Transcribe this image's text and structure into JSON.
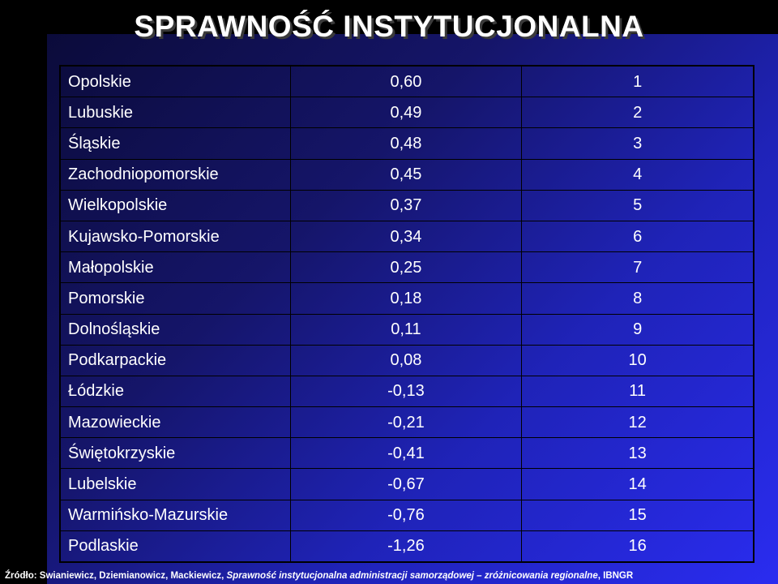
{
  "title": "SPRAWNOŚĆ INSTYTUCJONALNA",
  "table": {
    "rows": [
      {
        "region": "Opolskie",
        "score": "0,60",
        "rank": "1"
      },
      {
        "region": "Lubuskie",
        "score": "0,49",
        "rank": "2"
      },
      {
        "region": "Śląskie",
        "score": "0,48",
        "rank": "3"
      },
      {
        "region": "Zachodniopomorskie",
        "score": "0,45",
        "rank": "4"
      },
      {
        "region": "Wielkopolskie",
        "score": "0,37",
        "rank": "5"
      },
      {
        "region": "Kujawsko-Pomorskie",
        "score": "0,34",
        "rank": "6"
      },
      {
        "region": "Małopolskie",
        "score": "0,25",
        "rank": "7"
      },
      {
        "region": "Pomorskie",
        "score": "0,18",
        "rank": "8"
      },
      {
        "region": "Dolnośląskie",
        "score": "0,11",
        "rank": "9"
      },
      {
        "region": "Podkarpackie",
        "score": "0,08",
        "rank": "10"
      },
      {
        "region": "Łódzkie",
        "score": "-0,13",
        "rank": "11"
      },
      {
        "region": "Mazowieckie",
        "score": "-0,21",
        "rank": "12"
      },
      {
        "region": "Świętokrzyskie",
        "score": "-0,41",
        "rank": "13"
      },
      {
        "region": "Lubelskie",
        "score": "-0,67",
        "rank": "14"
      },
      {
        "region": "Warmińsko-Mazurskie",
        "score": "-0,76",
        "rank": "15"
      },
      {
        "region": "Podlaskie",
        "score": "-1,26",
        "rank": "16"
      }
    ]
  },
  "source": {
    "prefix": "Źródło: Swianiewicz, Dziemianowicz, Mackiewicz, ",
    "italic": "Sprawność instytucjonalna administracji samorządowej – zróżnicowania regionalne",
    "suffix": ", IBNGR"
  },
  "colors": {
    "background": "#000000",
    "panel_dark": "#0b0b3a",
    "panel_light": "#2a2cf0",
    "text": "#ffffff"
  }
}
